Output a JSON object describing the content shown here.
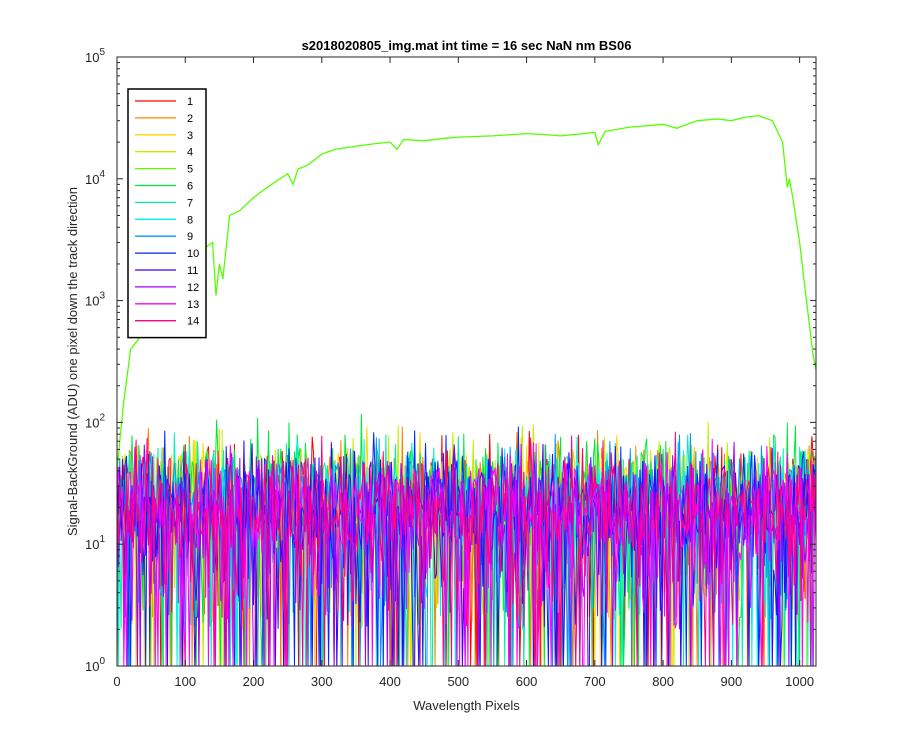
{
  "chart_data": {
    "type": "line",
    "title": "s2018020805_img.mat int time = 16 sec  NaN nm BS06",
    "xlabel": "Wavelength Pixels",
    "ylabel": "Signal-BackGround (ADU) one pixel down the track direction",
    "xlim": [
      0,
      1024
    ],
    "ylim": [
      1,
      100000
    ],
    "yscale": "log",
    "x_ticks": [
      "0",
      "100",
      "200",
      "300",
      "400",
      "500",
      "600",
      "700",
      "800",
      "900",
      "1000"
    ],
    "y_ticks": [
      {
        "base": "10",
        "exp": "0"
      },
      {
        "base": "10",
        "exp": "1"
      },
      {
        "base": "10",
        "exp": "2"
      },
      {
        "base": "10",
        "exp": "3"
      },
      {
        "base": "10",
        "exp": "4"
      },
      {
        "base": "10",
        "exp": "5"
      }
    ],
    "grid": false,
    "legend_position": "top-left",
    "series": [
      {
        "name": "1",
        "color": "#ff0000",
        "kind": "noise",
        "level": 22
      },
      {
        "name": "2",
        "color": "#ff8000",
        "kind": "noise",
        "level": 22
      },
      {
        "name": "3",
        "color": "#ffd500",
        "kind": "noise",
        "level": 24
      },
      {
        "name": "4",
        "color": "#c0f000",
        "kind": "noise",
        "level": 26
      },
      {
        "name": "5",
        "color": "#55ff00",
        "kind": "signal",
        "points": [
          [
            0,
            40
          ],
          [
            5,
            80
          ],
          [
            10,
            150
          ],
          [
            20,
            400
          ],
          [
            40,
            550
          ],
          [
            60,
            700
          ],
          [
            80,
            1000
          ],
          [
            100,
            1600
          ],
          [
            120,
            2500
          ],
          [
            140,
            3000
          ],
          [
            145,
            1100
          ],
          [
            150,
            2000
          ],
          [
            155,
            1500
          ],
          [
            165,
            5000
          ],
          [
            180,
            5500
          ],
          [
            200,
            7000
          ],
          [
            220,
            8500
          ],
          [
            250,
            11000
          ],
          [
            258,
            9000
          ],
          [
            265,
            12000
          ],
          [
            280,
            13000
          ],
          [
            300,
            16000
          ],
          [
            320,
            17500
          ],
          [
            350,
            18500
          ],
          [
            380,
            19500
          ],
          [
            400,
            20000
          ],
          [
            410,
            17500
          ],
          [
            420,
            21000
          ],
          [
            450,
            20500
          ],
          [
            480,
            21500
          ],
          [
            500,
            22000
          ],
          [
            550,
            22500
          ],
          [
            600,
            23500
          ],
          [
            630,
            23000
          ],
          [
            650,
            22500
          ],
          [
            700,
            24000
          ],
          [
            705,
            19000
          ],
          [
            715,
            24500
          ],
          [
            750,
            26500
          ],
          [
            800,
            28000
          ],
          [
            820,
            26000
          ],
          [
            850,
            30000
          ],
          [
            880,
            31000
          ],
          [
            900,
            30000
          ],
          [
            920,
            32000
          ],
          [
            940,
            33000
          ],
          [
            960,
            30000
          ],
          [
            975,
            20000
          ],
          [
            982,
            8500
          ],
          [
            985,
            10000
          ],
          [
            990,
            7000
          ],
          [
            1000,
            3000
          ],
          [
            1010,
            1000
          ],
          [
            1020,
            350
          ],
          [
            1024,
            270
          ]
        ]
      },
      {
        "name": "6",
        "color": "#00e63c",
        "kind": "noise",
        "level": 28
      },
      {
        "name": "7",
        "color": "#00f0b4",
        "kind": "noise",
        "level": 24
      },
      {
        "name": "8",
        "color": "#00f0f0",
        "kind": "noise",
        "level": 22
      },
      {
        "name": "9",
        "color": "#0096ff",
        "kind": "noise",
        "level": 22
      },
      {
        "name": "10",
        "color": "#0028ff",
        "kind": "noise",
        "level": 22
      },
      {
        "name": "11",
        "color": "#3c00ff",
        "kind": "noise",
        "level": 20
      },
      {
        "name": "12",
        "color": "#a000ff",
        "kind": "noise",
        "level": 20
      },
      {
        "name": "13",
        "color": "#ff00ff",
        "kind": "noise",
        "level": 20
      },
      {
        "name": "14",
        "color": "#ff0082",
        "kind": "noise",
        "level": 20
      }
    ]
  }
}
